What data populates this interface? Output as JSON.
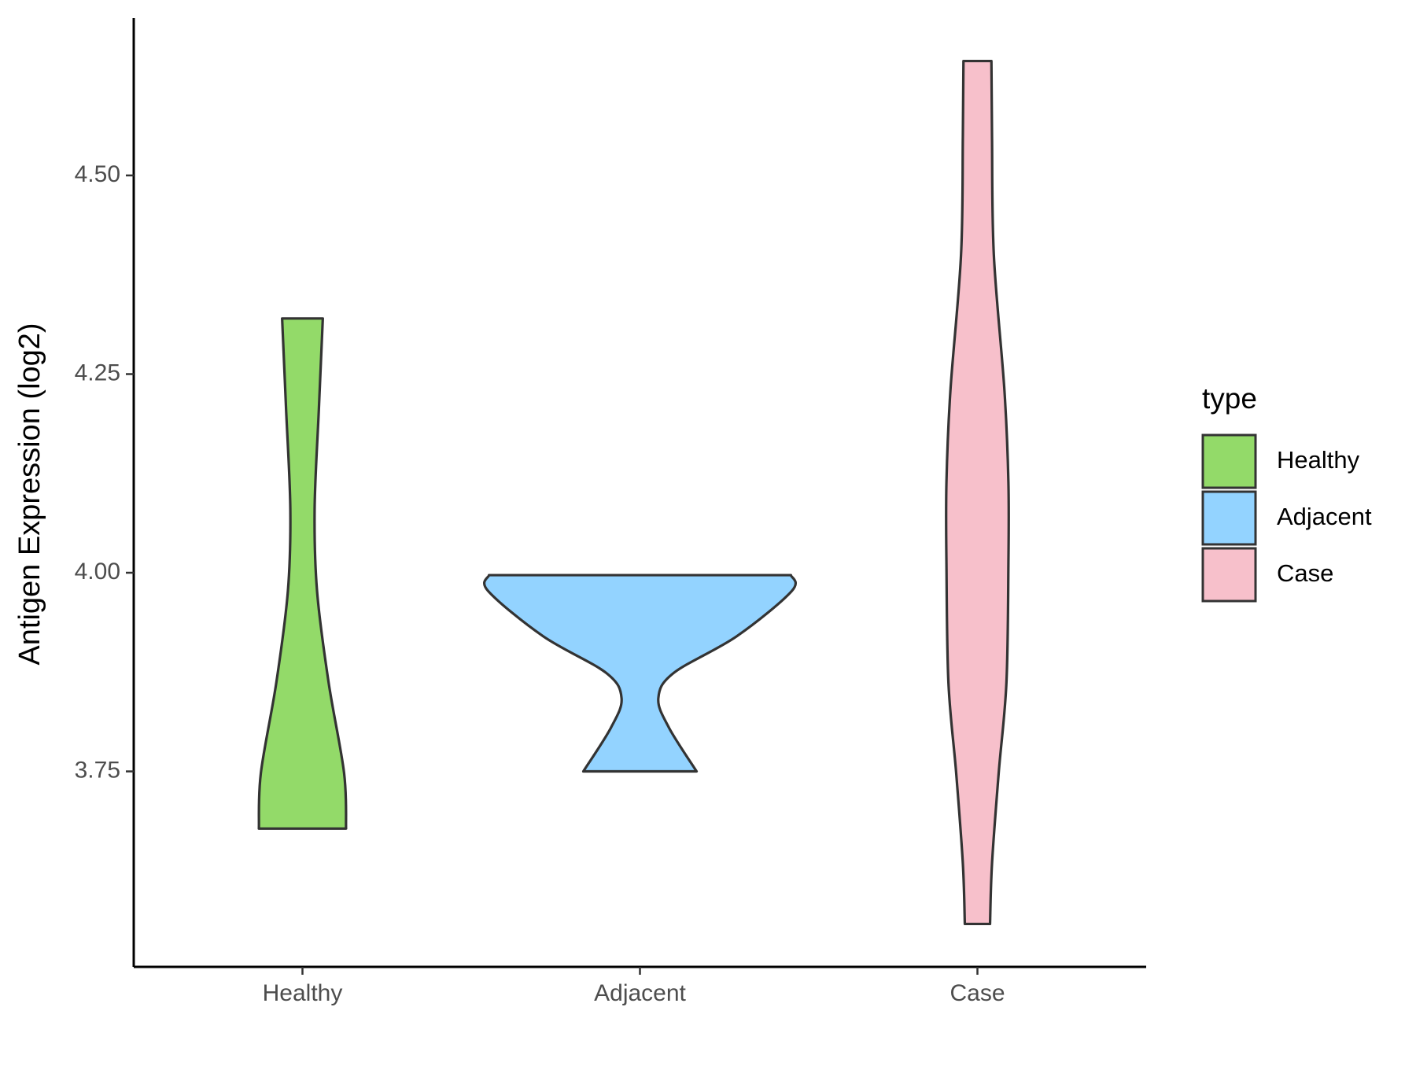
{
  "chart_data": {
    "type": "violin",
    "y_label": "Antigen Expression (log2)",
    "legend_title": "type",
    "legend_position": "right",
    "ylim": [
      3.504,
      4.698
    ],
    "yticks": [
      {
        "value": 3.75,
        "label": "3.75"
      },
      {
        "value": 4.0,
        "label": "4.00"
      },
      {
        "value": 4.25,
        "label": "4.25"
      },
      {
        "value": 4.5,
        "label": "4.50"
      }
    ],
    "categories": [
      "Healthy",
      "Adjacent",
      "Case"
    ],
    "series": [
      {
        "name": "Healthy",
        "color": "#93DA69",
        "y": [
          4.32,
          4.206,
          4.08,
          3.977,
          3.862,
          3.748,
          3.678
        ],
        "width": [
          0.134,
          0.108,
          0.08,
          0.096,
          0.172,
          0.274,
          0.287
        ]
      },
      {
        "name": "Adjacent",
        "color": "#93D3FF",
        "y": [
          3.997,
          3.977,
          3.92,
          3.874,
          3.842,
          3.805,
          3.75
        ],
        "width": [
          0.994,
          1.0,
          0.637,
          0.223,
          0.121,
          0.191,
          0.373
        ]
      },
      {
        "name": "Case",
        "color": "#F7C0CB",
        "y": [
          4.644,
          4.549,
          4.4,
          4.229,
          4.114,
          4.011,
          3.862,
          3.748,
          3.634,
          3.558
        ],
        "width": [
          0.092,
          0.096,
          0.108,
          0.178,
          0.204,
          0.204,
          0.191,
          0.14,
          0.096,
          0.083
        ]
      }
    ]
  }
}
